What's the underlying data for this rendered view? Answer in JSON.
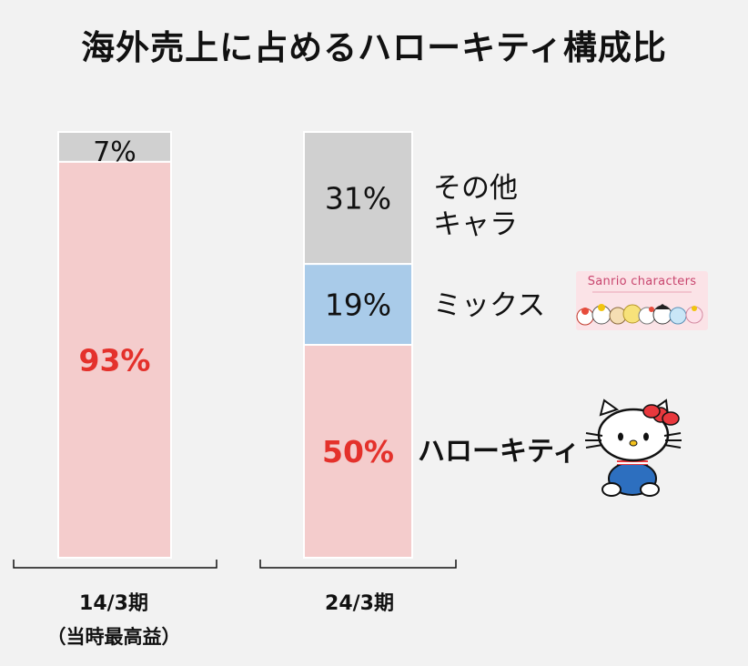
{
  "title": "海外売上に占めるハローキティ構成比",
  "colors": {
    "hello_kitty": "#f4cccc",
    "mix": "#a9cbe9",
    "other": "#d0d0d0",
    "highlight_text": "#e4312b",
    "text": "#111111"
  },
  "legend": {
    "other_line1": "その他",
    "other_line2": "キャラ",
    "mix": "ミックス",
    "hello_kitty": "ハローキティ",
    "sanrio_badge": "Sanrio characters"
  },
  "chart_data": {
    "type": "bar",
    "stacked": true,
    "categories": [
      "14/3期",
      "24/3期"
    ],
    "category_notes": [
      "（当時最高益）",
      ""
    ],
    "series": [
      {
        "name": "ハローキティ",
        "values": [
          93,
          50
        ],
        "labels": [
          "93%",
          "50%"
        ]
      },
      {
        "name": "ミックス",
        "values": [
          0,
          19
        ],
        "labels": [
          "",
          "19%"
        ]
      },
      {
        "name": "その他キャラ",
        "values": [
          7,
          31
        ],
        "labels": [
          "7%",
          "31%"
        ]
      }
    ],
    "title": "海外売上に占めるハローキティ構成比",
    "xlabel": "",
    "ylabel": "",
    "ylim": [
      0,
      100
    ],
    "grid": false,
    "legend_position": "right"
  }
}
